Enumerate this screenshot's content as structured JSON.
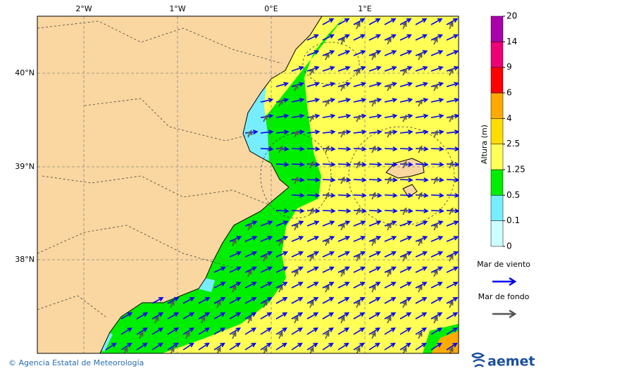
{
  "map": {
    "lon_labels": [
      "2°W",
      "1°W",
      "0°E",
      "1°E"
    ],
    "lat_labels": [
      "40°N",
      "39°N",
      "38°N"
    ],
    "colorbar": {
      "title": "Altura (m)",
      "levels": [
        0,
        0.1,
        0.5,
        1.25,
        2.5,
        4,
        6,
        9,
        14,
        20
      ],
      "colors": [
        "#ccffff",
        "#77eeff",
        "#00ee00",
        "#ffff55",
        "#ffdd00",
        "#ffaa00",
        "#ff0000",
        "#ee0077",
        "#aa00aa"
      ]
    },
    "legend": [
      {
        "label": "Mar de viento",
        "color": "#0000ee"
      },
      {
        "label": "Mar de fondo",
        "color": "#555555"
      }
    ],
    "footer": {
      "credit": "© Agencia Estatal de Meteorología",
      "logo": "aemet"
    }
  }
}
